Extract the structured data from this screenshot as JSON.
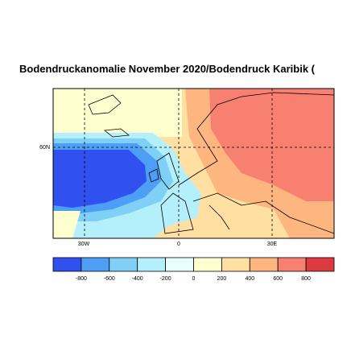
{
  "title": "Bodendruckanomalie November 2020/Bodendruck Karibik (",
  "map": {
    "lon_labels": [
      "30W",
      "0",
      "30E"
    ],
    "lat_labels": [
      "60N"
    ]
  },
  "colorbar": {
    "colors": [
      "#3050f0",
      "#4c9ff5",
      "#7fcff7",
      "#b4f0fb",
      "#e8ffff",
      "#ffffd0",
      "#ffe0a2",
      "#fdb680",
      "#f88070",
      "#dd3a40"
    ],
    "labels": [
      "-800",
      "-600",
      "-400",
      "-200",
      "0",
      "200",
      "400",
      "600",
      "800"
    ]
  }
}
